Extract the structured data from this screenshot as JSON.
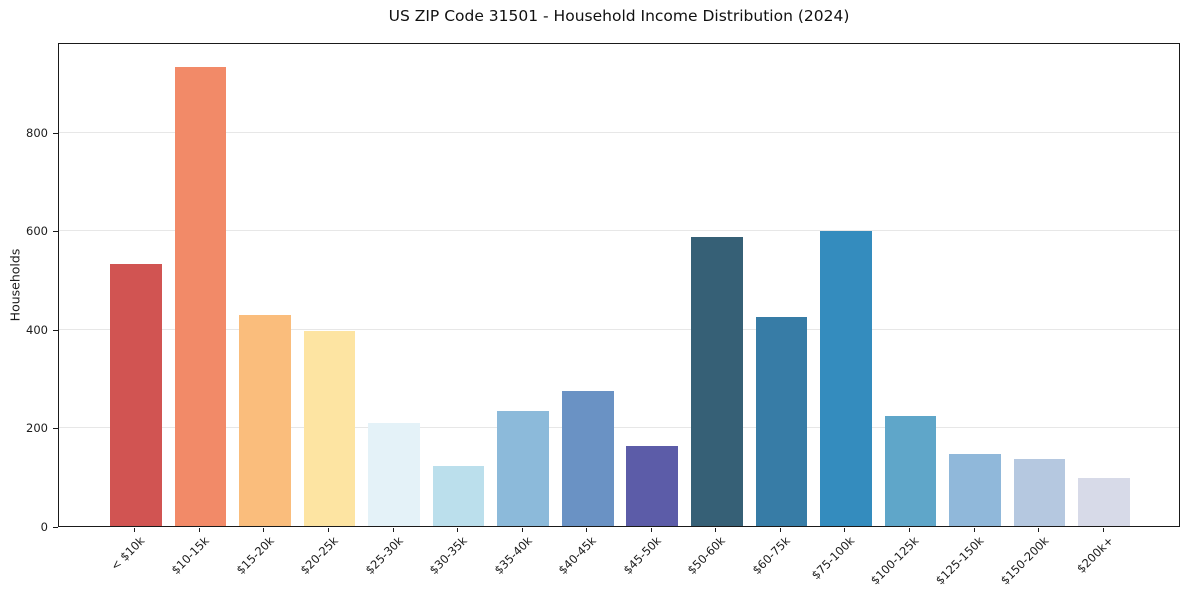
{
  "figure": {
    "title": "US ZIP Code 31501 - Household Income Distribution (2024)"
  },
  "chart_data": {
    "type": "bar",
    "title": "US ZIP Code 31501 - Household Income Distribution (2024)",
    "xlabel": "",
    "ylabel": "Households",
    "categories": [
      "< $10k",
      "$10-15k",
      "$15-20k",
      "$20-25k",
      "$25-30k",
      "$30-35k",
      "$35-40k",
      "$40-45k",
      "$45-50k",
      "$50-60k",
      "$60-75k",
      "$75-100k",
      "$100-125k",
      "$125-150k",
      "$150-200k",
      "$200k+"
    ],
    "values": [
      532,
      933,
      428,
      396,
      210,
      121,
      233,
      274,
      162,
      587,
      424,
      599,
      223,
      147,
      137,
      97
    ],
    "bar_colors": [
      "#d15452",
      "#f28a68",
      "#fabd7c",
      "#fde4a2",
      "#e4f2f8",
      "#bbdfec",
      "#8cbada",
      "#6a92c4",
      "#5c5ca8",
      "#366076",
      "#377ca6",
      "#348cbe",
      "#5fa6c9",
      "#90b8da",
      "#b5c8e0",
      "#d7dae8"
    ],
    "yticks": [
      0,
      200,
      400,
      600,
      800
    ],
    "ylim": [
      0,
      983
    ],
    "grid": "horizontal-only",
    "legend": "none",
    "x_tick_rotation_deg": 45,
    "bar_width_fraction": 0.8
  },
  "style_colors": {
    "background": "#ffffff",
    "grid": "#e7e7e7",
    "spine": "#1a1a1a",
    "text": "#1c1c1c"
  }
}
